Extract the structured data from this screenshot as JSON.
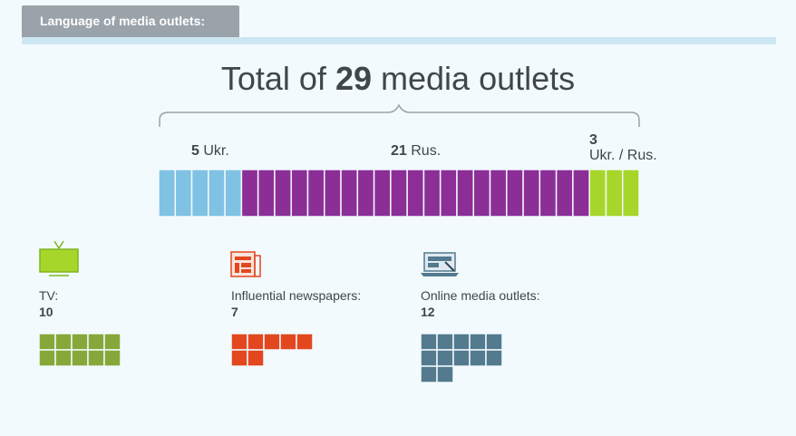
{
  "header": {
    "label": "Language of media outlets:"
  },
  "title": {
    "prefix": "Total of",
    "total": "29",
    "suffix": "media outlets"
  },
  "chart_data": [
    {
      "type": "bar",
      "title": "Total of 29 media outlets",
      "categories": [
        "Ukr.",
        "Rus.",
        "Ukr. / Rus."
      ],
      "values": [
        5,
        21,
        3
      ],
      "labels": [
        "5 Ukr.",
        "21 Rus.",
        "3 Ukr. / Rus."
      ],
      "colors": [
        "#7fc2e3",
        "#8b2f96",
        "#a7d62a"
      ]
    },
    {
      "type": "bar",
      "categories": [
        "TV:",
        "Influential newspapers:",
        "Online media outlets:"
      ],
      "values": [
        10,
        7,
        12
      ],
      "colors": [
        "#86a83a",
        "#e2471f",
        "#537a8e"
      ]
    }
  ],
  "language": {
    "ukr": {
      "count": "5",
      "label": "Ukr."
    },
    "rus": {
      "count": "21",
      "label": "Rus."
    },
    "mixed": {
      "count": "3",
      "label": "Ukr. / Rus."
    }
  },
  "media": {
    "tv": {
      "label": "TV:",
      "value": "10",
      "icon": "tv-icon"
    },
    "newspapers": {
      "label": "Influential newspapers:",
      "value": "7",
      "icon": "newspaper-icon"
    },
    "online": {
      "label": "Online media outlets:",
      "value": "12",
      "icon": "laptop-icon"
    }
  }
}
